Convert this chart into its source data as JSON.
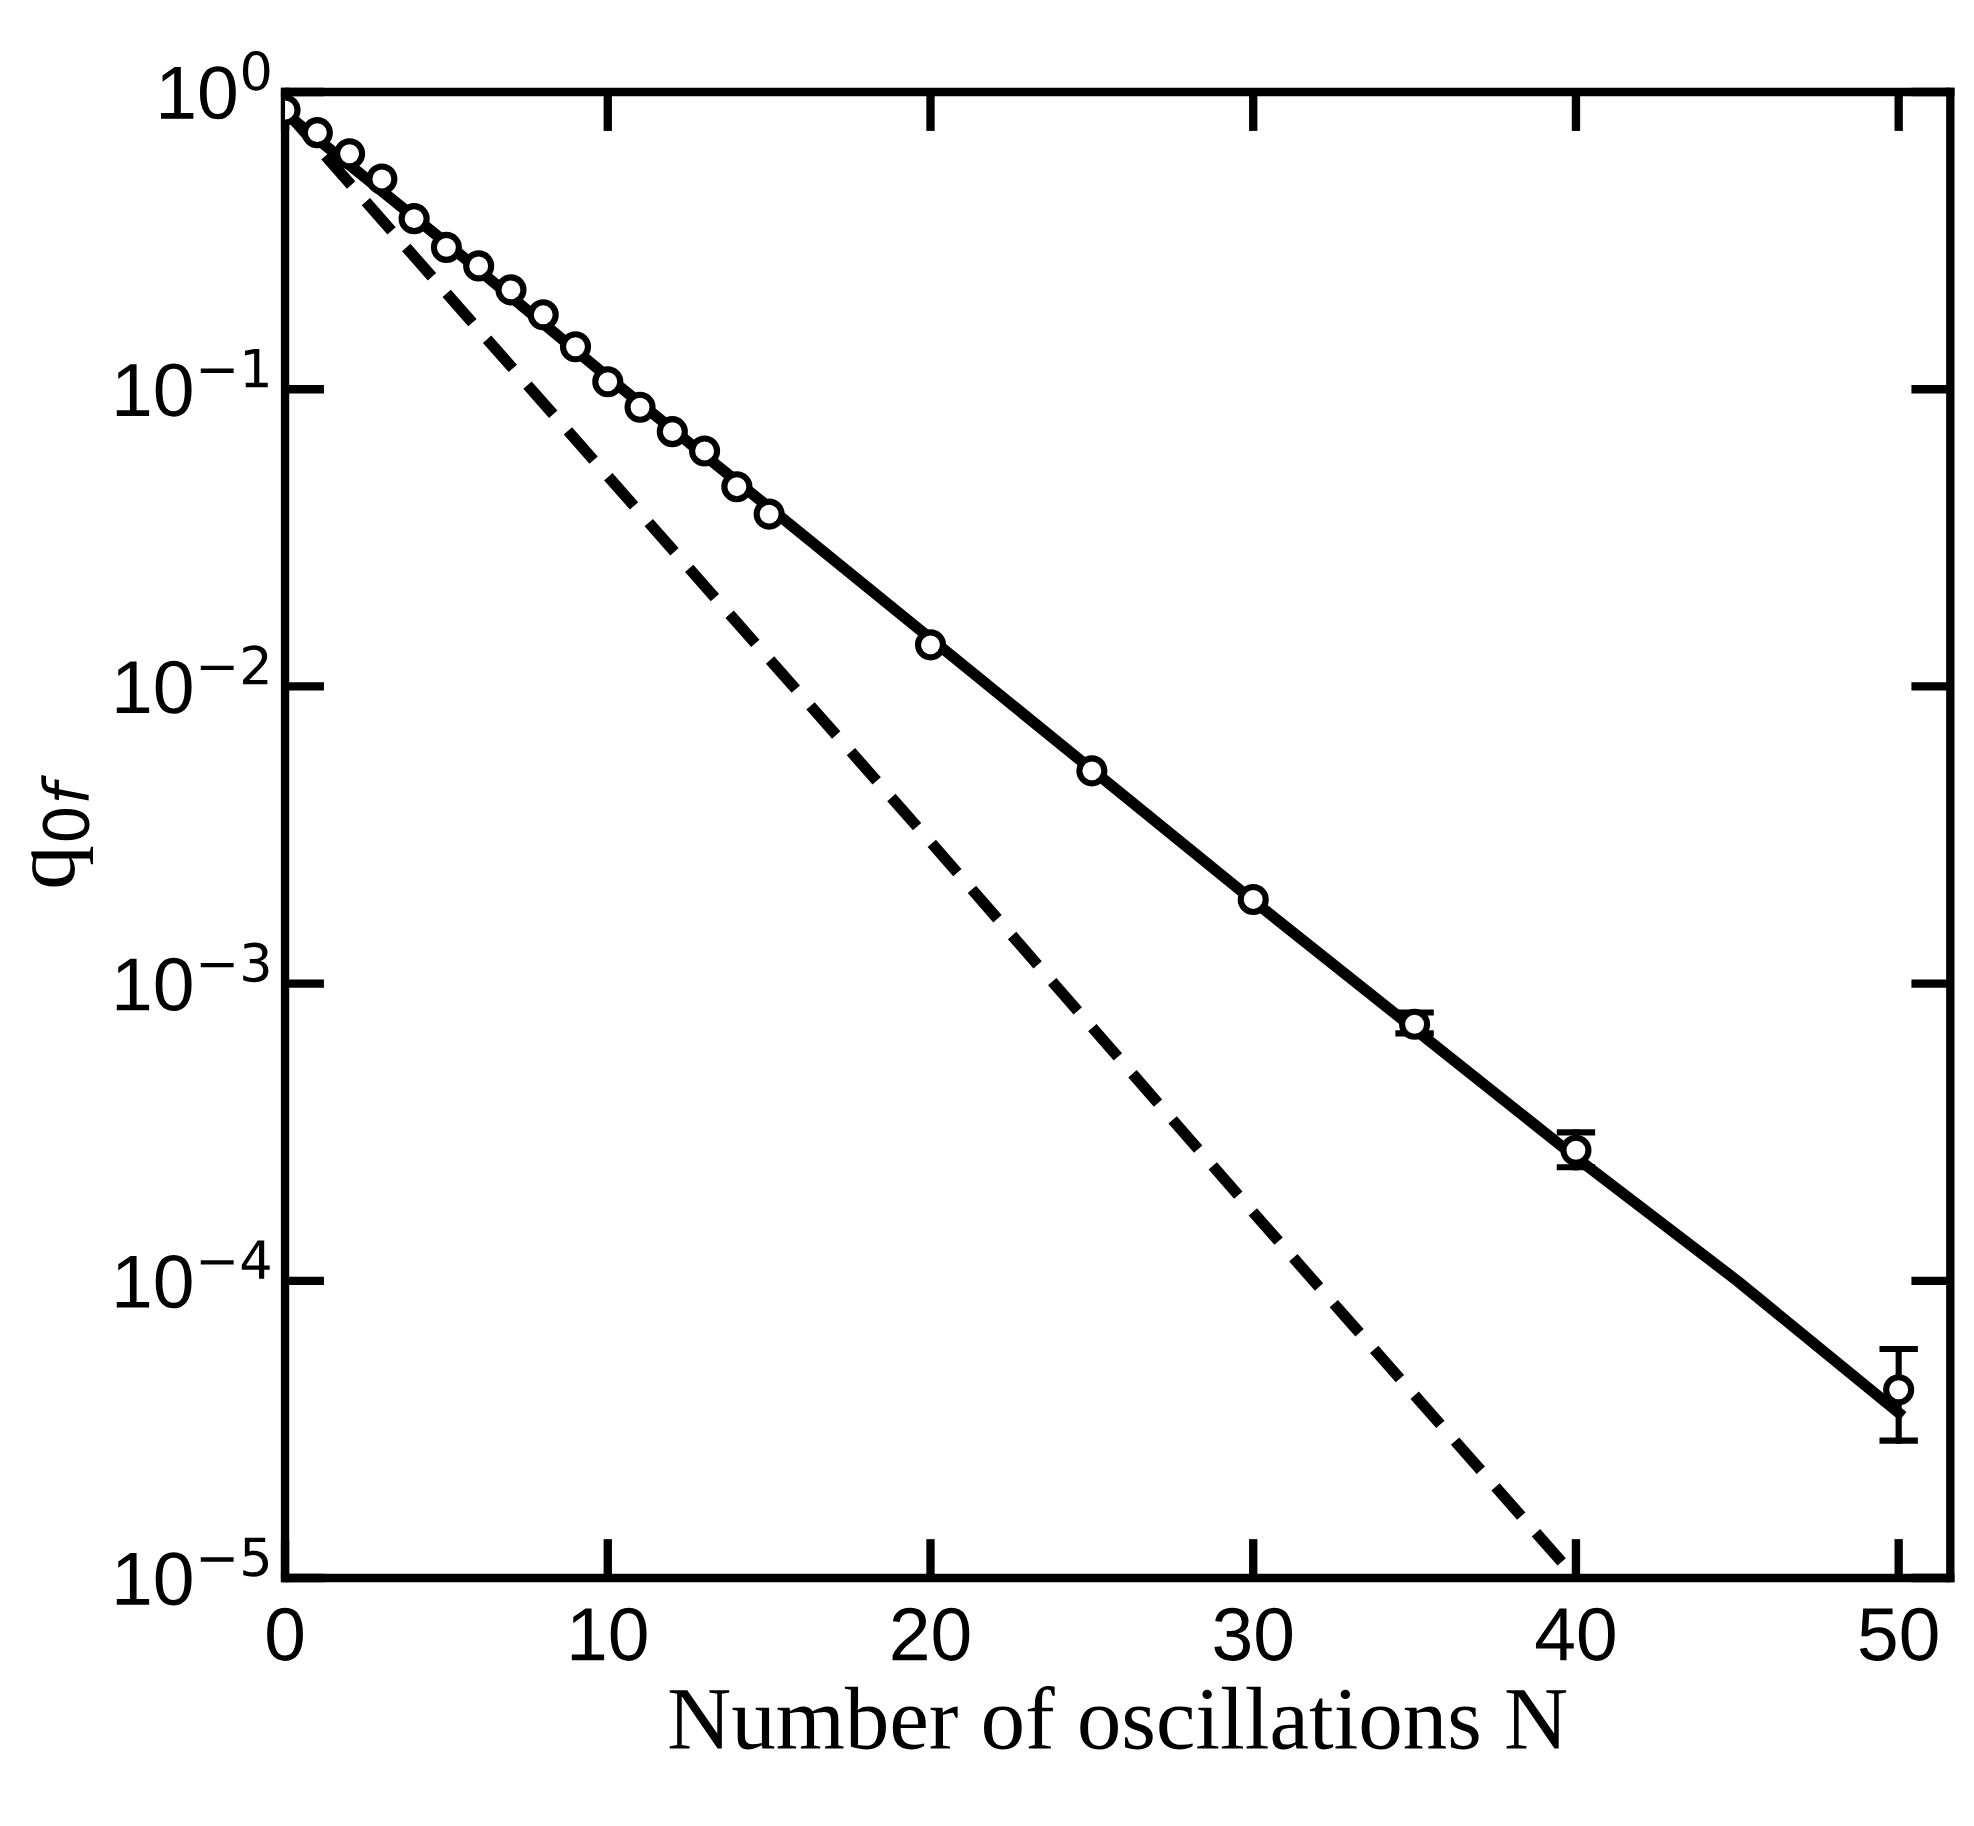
{
  "chart_data": {
    "type": "scatter",
    "xlabel": "Number of oscillations N",
    "ylabel": "q$_{0f}$",
    "log": "y",
    "xlim": [
      0,
      51.6
    ],
    "xticks": [
      0,
      10,
      20,
      30,
      40,
      50
    ],
    "ylim": [
      1e-05,
      1
    ],
    "yticks": [
      {
        "value": 1,
        "label": "10$^{0}$"
      },
      {
        "value": 0.1,
        "label": "10$^{−1}$"
      },
      {
        "value": 0.01,
        "label": "10$^{−2}$"
      },
      {
        "value": 0.001,
        "label": "10$^{−3}$"
      },
      {
        "value": 0.0001,
        "label": "10$^{−4}$"
      },
      {
        "value": 1e-05,
        "label": "10$^{−5}$"
      }
    ],
    "grid": false,
    "series": [
      {
        "type": "scatter",
        "color": "#000000",
        "marker": "circle",
        "x": [
          0,
          1,
          2,
          3,
          4,
          5,
          6,
          7,
          8,
          9,
          10,
          11,
          12,
          13,
          14,
          15,
          20,
          25,
          30,
          35,
          40,
          50
        ],
        "values": [
          0.87,
          0.73,
          0.62,
          0.51,
          0.375,
          0.3,
          0.26,
          0.216,
          0.178,
          0.139,
          0.106,
          0.087,
          0.072,
          0.062,
          0.047,
          0.038,
          0.0138,
          0.0052,
          0.00192,
          0.00073,
          0.000275,
          4.3e-05
        ],
        "errors": [
          null,
          null,
          null,
          null,
          null,
          null,
          null,
          null,
          null,
          null,
          null,
          null,
          null,
          null,
          null,
          null,
          null,
          null,
          null,
          [
            0.00068,
            0.0008
          ],
          [
            0.000241,
            0.000316
          ],
          [
            2.9e-05,
            5.9e-05
          ]
        ]
      },
      {
        "type": "line",
        "color": "#000000",
        "line_style": "solid",
        "marker": "none",
        "x": [
          0,
          5,
          10,
          15,
          20,
          30,
          40,
          45,
          50
        ],
        "values": [
          0.85,
          0.31,
          0.11,
          0.04,
          0.0145,
          0.0019,
          0.00026,
          0.0001,
          3.6e-05
        ]
      },
      {
        "type": "line",
        "color": "#000000",
        "line_style": "dashed",
        "marker": "none",
        "x": [
          0,
          10,
          20,
          30,
          40
        ],
        "values": [
          0.87,
          0.051,
          0.003,
          0.00017,
          1e-05
        ]
      }
    ]
  }
}
